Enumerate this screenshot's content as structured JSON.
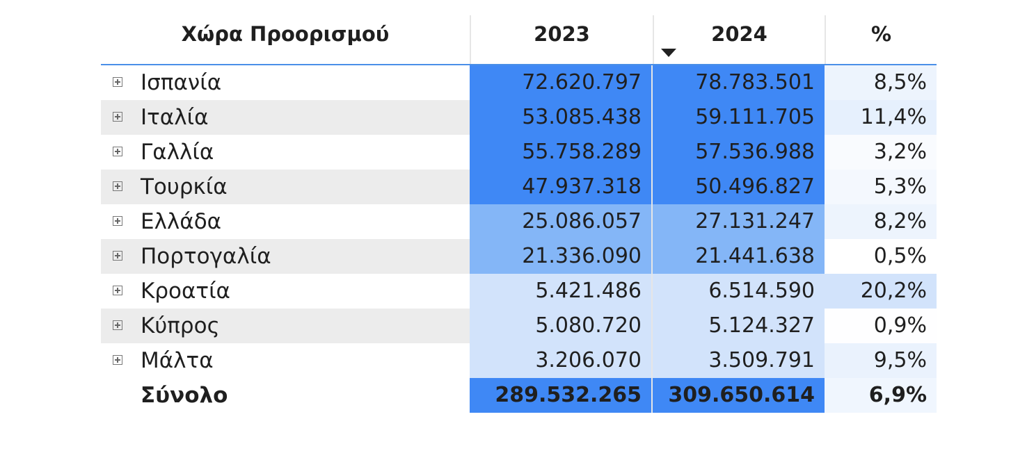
{
  "columns": {
    "name": "Χώρα Προορισμού",
    "y2023": "2023",
    "y2024": "2024",
    "pct": "%"
  },
  "sort": {
    "column": "2024",
    "direction": "descending",
    "icon": "sort-desc-icon"
  },
  "rows": [
    {
      "name": "Ισπανία",
      "y2023": "72.620.797",
      "y2024": "78.783.501",
      "pct": "8,5%"
    },
    {
      "name": "Ιταλία",
      "y2023": "53.085.438",
      "y2024": "59.111.705",
      "pct": "11,4%"
    },
    {
      "name": "Γαλλία",
      "y2023": "55.758.289",
      "y2024": "57.536.988",
      "pct": "3,2%"
    },
    {
      "name": "Τουρκία",
      "y2023": "47.937.318",
      "y2024": "50.496.827",
      "pct": "5,3%"
    },
    {
      "name": "Ελλάδα",
      "y2023": "25.086.057",
      "y2024": "27.131.247",
      "pct": "8,2%"
    },
    {
      "name": "Πορτογαλία",
      "y2023": "21.336.090",
      "y2024": "21.441.638",
      "pct": "0,5%"
    },
    {
      "name": "Κροατία",
      "y2023": "5.421.486",
      "y2024": "6.514.590",
      "pct": "20,2%"
    },
    {
      "name": "Κύπρος",
      "y2023": "5.080.720",
      "y2024": "5.124.327",
      "pct": "0,9%"
    },
    {
      "name": "Μάλτα",
      "y2023": "3.206.070",
      "y2024": "3.509.791",
      "pct": "9,5%"
    }
  ],
  "total": {
    "name": "Σύνολο",
    "y2023": "289.532.265",
    "y2024": "309.650.614",
    "pct": "6,9%"
  },
  "colors": {
    "heat_max": "#3f88f5",
    "heat_mid": "#84b6f7",
    "heat_low": "#d2e3fb",
    "pct_max": "#d2e3fb",
    "pct_min": "#ffffff",
    "header_rule": "#4a8fe8",
    "alt_row": "#ececec"
  }
}
